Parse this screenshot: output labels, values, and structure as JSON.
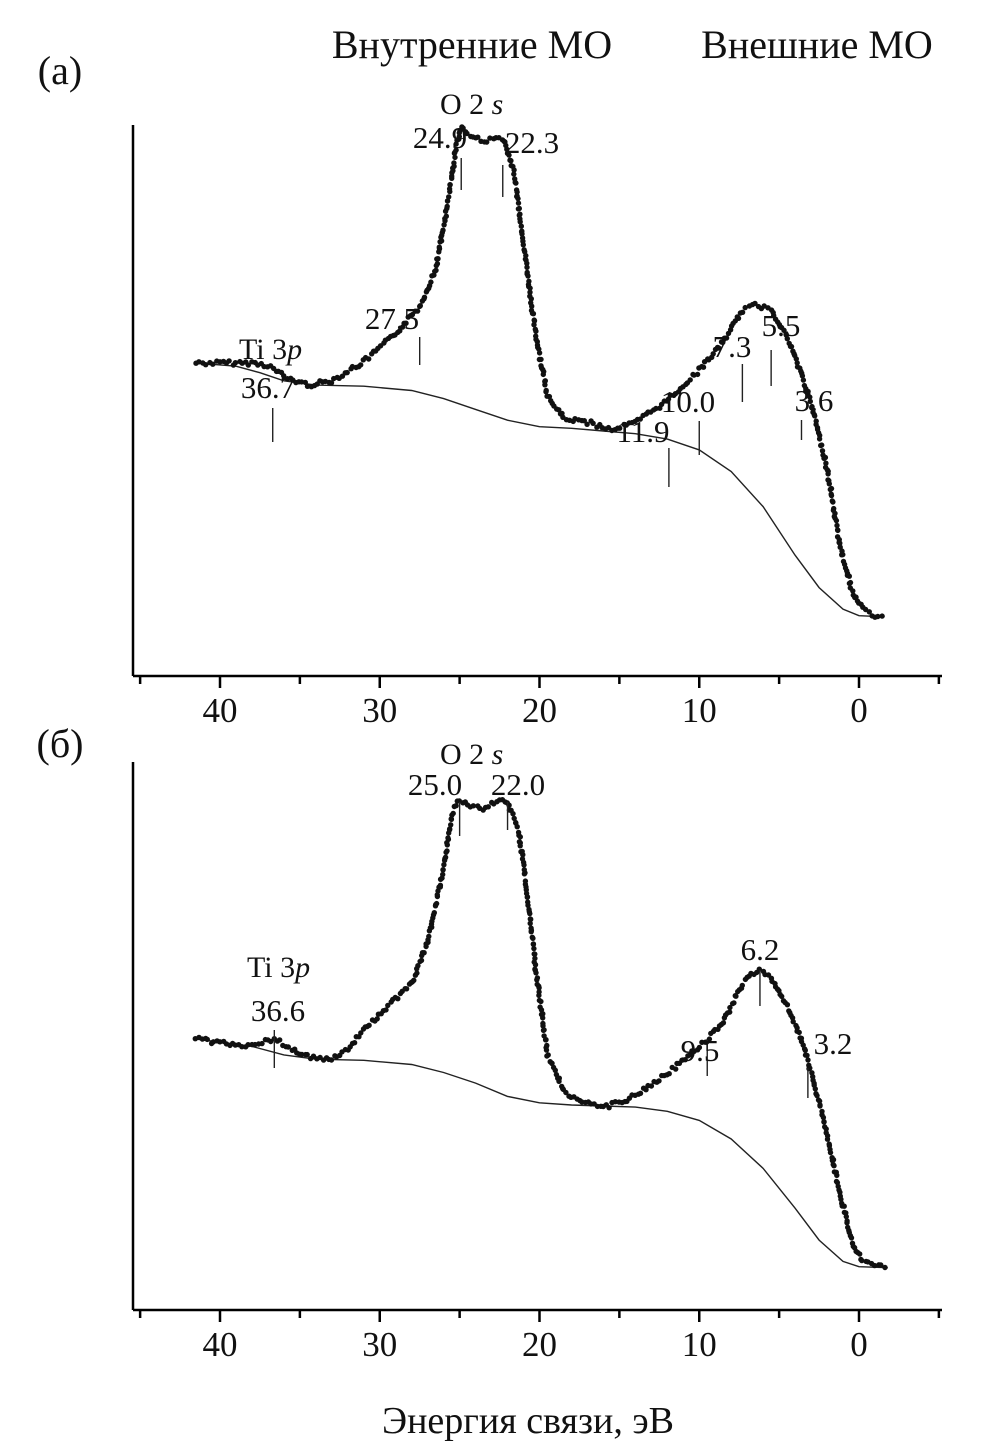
{
  "header": {
    "left": "Внутренние МО",
    "right": "Внешние МО"
  },
  "x_axis_label": "Энергия связи, эВ",
  "chart_data": [
    {
      "type": "scatter",
      "panel_label": "(а)",
      "xlabel": "",
      "ylabel": "",
      "xlim": [
        45,
        -5
      ],
      "x_reversed": true,
      "xticks": [
        40,
        30,
        20,
        10,
        0
      ],
      "xtick_labels": [
        "40",
        "30",
        "20",
        "10",
        "0"
      ],
      "y_units": "arbitrary",
      "ylim": [
        0,
        1
      ],
      "series": [
        {
          "role": "spectrum",
          "points": [
            [
              41.5,
              0.476
            ],
            [
              40.0,
              0.476
            ],
            [
              39.0,
              0.476
            ],
            [
              38.0,
              0.476
            ],
            [
              37.0,
              0.472
            ],
            [
              35.8,
              0.448
            ],
            [
              34.5,
              0.435
            ],
            [
              33.0,
              0.443
            ],
            [
              31.0,
              0.478
            ],
            [
              29.0,
              0.53
            ],
            [
              27.5,
              0.58
            ],
            [
              26.5,
              0.65
            ],
            [
              25.8,
              0.76
            ],
            [
              25.2,
              0.88
            ],
            [
              24.9,
              0.914
            ],
            [
              24.5,
              0.9
            ],
            [
              24.0,
              0.892
            ],
            [
              23.3,
              0.888
            ],
            [
              22.3,
              0.893
            ],
            [
              21.6,
              0.83
            ],
            [
              21.0,
              0.7
            ],
            [
              20.3,
              0.54
            ],
            [
              19.5,
              0.415
            ],
            [
              18.5,
              0.374
            ],
            [
              17.0,
              0.366
            ],
            [
              15.5,
              0.353
            ],
            [
              14.0,
              0.365
            ],
            [
              12.5,
              0.396
            ],
            [
              11.9,
              0.409
            ],
            [
              10.0,
              0.463
            ],
            [
              8.5,
              0.515
            ],
            [
              7.3,
              0.573
            ],
            [
              6.5,
              0.583
            ],
            [
              5.5,
              0.576
            ],
            [
              4.6,
              0.53
            ],
            [
              3.6,
              0.455
            ],
            [
              2.8,
              0.38
            ],
            [
              2.0,
              0.28
            ],
            [
              1.2,
              0.14
            ],
            [
              0.5,
              0.06
            ],
            [
              -0.2,
              0.02
            ],
            [
              -1.0,
              0.008
            ],
            [
              -1.6,
              0.006
            ]
          ]
        },
        {
          "role": "background",
          "points": [
            [
              41.5,
              0.476
            ],
            [
              39.0,
              0.47
            ],
            [
              37.5,
              0.458
            ],
            [
              36.0,
              0.443
            ],
            [
              34.0,
              0.435
            ],
            [
              31.0,
              0.433
            ],
            [
              28.0,
              0.425
            ],
            [
              26.0,
              0.41
            ],
            [
              24.0,
              0.39
            ],
            [
              22.0,
              0.37
            ],
            [
              20.0,
              0.358
            ],
            [
              18.0,
              0.355
            ],
            [
              16.0,
              0.35
            ],
            [
              14.0,
              0.345
            ],
            [
              12.0,
              0.335
            ],
            [
              10.0,
              0.315
            ],
            [
              8.0,
              0.275
            ],
            [
              6.0,
              0.21
            ],
            [
              4.0,
              0.12
            ],
            [
              2.5,
              0.06
            ],
            [
              1.0,
              0.02
            ],
            [
              0.0,
              0.008
            ],
            [
              -1.6,
              0.006
            ]
          ]
        }
      ],
      "peaks": [
        {
          "label": "36.7",
          "x": 36.7
        },
        {
          "label": "27.5",
          "x": 27.5
        },
        {
          "label": "24.9",
          "x": 24.9
        },
        {
          "label": "22.3",
          "x": 22.3
        },
        {
          "label": "11.9",
          "x": 11.9
        },
        {
          "label": "10.0",
          "x": 10.0
        },
        {
          "label": "7.3",
          "x": 7.3
        },
        {
          "label": "5.5",
          "x": 5.5
        },
        {
          "label": "3.6",
          "x": 3.6
        }
      ],
      "annotations": [
        {
          "text": "Ti 3",
          "italic": "p"
        },
        {
          "text": "O 2 ",
          "italic": "s"
        }
      ]
    },
    {
      "type": "scatter",
      "panel_label": "(б)",
      "xlabel": "Энергия связи, эВ",
      "ylabel": "",
      "xlim": [
        45,
        -5
      ],
      "x_reversed": true,
      "xticks": [
        40,
        30,
        20,
        10,
        0
      ],
      "xtick_labels": [
        "40",
        "30",
        "20",
        "10",
        "0"
      ],
      "y_units": "arbitrary",
      "ylim": [
        0,
        1
      ],
      "series": [
        {
          "role": "spectrum",
          "points": [
            [
              41.5,
              0.438
            ],
            [
              40.0,
              0.431
            ],
            [
              39.0,
              0.424
            ],
            [
              38.0,
              0.428
            ],
            [
              36.6,
              0.438
            ],
            [
              35.5,
              0.421
            ],
            [
              34.5,
              0.405
            ],
            [
              33.0,
              0.4
            ],
            [
              32.0,
              0.42
            ],
            [
              30.5,
              0.472
            ],
            [
              29.0,
              0.512
            ],
            [
              28.0,
              0.541
            ],
            [
              27.0,
              0.62
            ],
            [
              26.0,
              0.76
            ],
            [
              25.5,
              0.86
            ],
            [
              25.0,
              0.888
            ],
            [
              24.5,
              0.877
            ],
            [
              23.5,
              0.871
            ],
            [
              22.5,
              0.888
            ],
            [
              22.0,
              0.881
            ],
            [
              21.3,
              0.83
            ],
            [
              20.8,
              0.72
            ],
            [
              20.2,
              0.56
            ],
            [
              19.5,
              0.41
            ],
            [
              18.5,
              0.34
            ],
            [
              17.5,
              0.32
            ],
            [
              16.0,
              0.31
            ],
            [
              14.5,
              0.322
            ],
            [
              13.0,
              0.352
            ],
            [
              11.5,
              0.384
            ],
            [
              10.3,
              0.416
            ],
            [
              9.5,
              0.436
            ],
            [
              8.5,
              0.47
            ],
            [
              7.5,
              0.532
            ],
            [
              6.8,
              0.56
            ],
            [
              6.2,
              0.565
            ],
            [
              5.5,
              0.554
            ],
            [
              4.7,
              0.51
            ],
            [
              3.9,
              0.46
            ],
            [
              3.2,
              0.398
            ],
            [
              2.5,
              0.32
            ],
            [
              1.8,
              0.23
            ],
            [
              1.2,
              0.15
            ],
            [
              0.5,
              0.06
            ],
            [
              -0.2,
              0.02
            ],
            [
              -1.0,
              0.01
            ],
            [
              -1.8,
              0.008
            ]
          ]
        },
        {
          "role": "background",
          "points": [
            [
              41.5,
              0.438
            ],
            [
              39.5,
              0.43
            ],
            [
              38.0,
              0.424
            ],
            [
              36.0,
              0.408
            ],
            [
              34.0,
              0.4
            ],
            [
              31.0,
              0.398
            ],
            [
              28.0,
              0.39
            ],
            [
              26.0,
              0.375
            ],
            [
              24.0,
              0.355
            ],
            [
              22.0,
              0.33
            ],
            [
              20.0,
              0.318
            ],
            [
              18.0,
              0.314
            ],
            [
              16.0,
              0.312
            ],
            [
              14.0,
              0.31
            ],
            [
              12.0,
              0.302
            ],
            [
              10.0,
              0.285
            ],
            [
              8.0,
              0.25
            ],
            [
              6.0,
              0.195
            ],
            [
              4.0,
              0.12
            ],
            [
              2.5,
              0.06
            ],
            [
              1.0,
              0.02
            ],
            [
              0.0,
              0.01
            ],
            [
              -1.8,
              0.008
            ]
          ]
        }
      ],
      "peaks": [
        {
          "label": "36.6",
          "x": 36.6
        },
        {
          "label": "25.0",
          "x": 25.0
        },
        {
          "label": "22.0",
          "x": 22.0
        },
        {
          "label": "9.5",
          "x": 9.5
        },
        {
          "label": "6.2",
          "x": 6.2
        },
        {
          "label": "3.2",
          "x": 3.2
        }
      ],
      "annotations": [
        {
          "text": "Ti 3",
          "italic": "p"
        },
        {
          "text": "O 2 ",
          "italic": "s"
        }
      ]
    }
  ]
}
